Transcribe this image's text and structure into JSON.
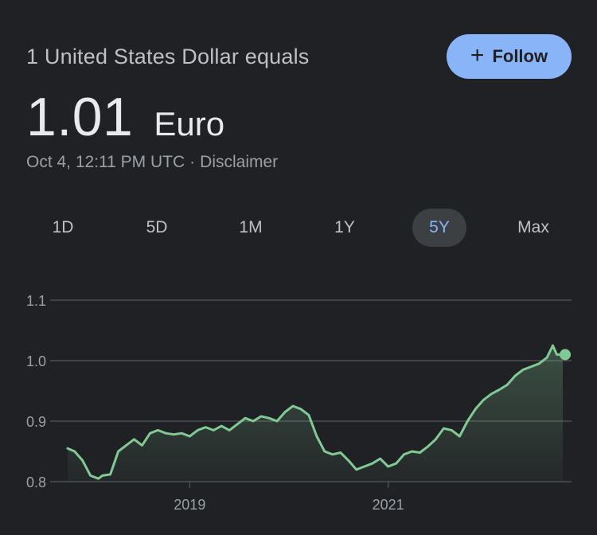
{
  "header": {
    "subtitle": "1 United States Dollar equals",
    "follow_label": "Follow",
    "follow_icon": "plus-icon"
  },
  "rate": {
    "value": "1.01",
    "unit": "Euro"
  },
  "meta": {
    "timestamp": "Oct 4, 12:11 PM UTC",
    "separator": "·",
    "disclaimer": "Disclaimer"
  },
  "ranges": [
    {
      "label": "1D",
      "active": false
    },
    {
      "label": "5D",
      "active": false
    },
    {
      "label": "1M",
      "active": false
    },
    {
      "label": "1Y",
      "active": false
    },
    {
      "label": "5Y",
      "active": true
    },
    {
      "label": "Max",
      "active": false
    }
  ],
  "colors": {
    "background": "#202124",
    "accent": "#8ab4f8",
    "line": "#81c995",
    "grid": "#5f6368"
  },
  "chart_data": {
    "type": "area",
    "ylim": [
      0.8,
      1.1
    ],
    "yticks": [
      "0.8",
      "0.9",
      "1.0",
      "1.1"
    ],
    "xticks": [
      {
        "label": "2019",
        "x": 2019.0
      },
      {
        "label": "2021",
        "x": 2021.0
      }
    ],
    "xlim": [
      2017.77,
      2022.76
    ],
    "grid": true,
    "series": [
      {
        "x": [
          2017.77,
          2017.84,
          2017.92,
          2018.0,
          2018.08,
          2018.12,
          2018.2,
          2018.28,
          2018.36,
          2018.44,
          2018.52,
          2018.6,
          2018.68,
          2018.76,
          2018.84,
          2018.92,
          2019.0,
          2019.08,
          2019.16,
          2019.24,
          2019.32,
          2019.4,
          2019.48,
          2019.56,
          2019.64,
          2019.72,
          2019.8,
          2019.88,
          2019.96,
          2020.04,
          2020.12,
          2020.2,
          2020.28,
          2020.36,
          2020.44,
          2020.52,
          2020.6,
          2020.68,
          2020.76,
          2020.84,
          2020.92,
          2021.0,
          2021.08,
          2021.16,
          2021.24,
          2021.32,
          2021.4,
          2021.48,
          2021.56,
          2021.64,
          2021.72,
          2021.8,
          2021.88,
          2021.96,
          2022.04,
          2022.12,
          2022.2,
          2022.28,
          2022.36,
          2022.44,
          2022.52,
          2022.6,
          2022.66,
          2022.7,
          2022.76
        ],
        "y": [
          0.855,
          0.85,
          0.835,
          0.81,
          0.805,
          0.81,
          0.812,
          0.85,
          0.86,
          0.87,
          0.86,
          0.88,
          0.885,
          0.88,
          0.878,
          0.88,
          0.875,
          0.885,
          0.89,
          0.885,
          0.892,
          0.885,
          0.895,
          0.905,
          0.9,
          0.908,
          0.905,
          0.9,
          0.915,
          0.925,
          0.92,
          0.91,
          0.875,
          0.85,
          0.845,
          0.848,
          0.835,
          0.82,
          0.825,
          0.83,
          0.838,
          0.825,
          0.83,
          0.845,
          0.85,
          0.848,
          0.858,
          0.87,
          0.888,
          0.885,
          0.875,
          0.9,
          0.92,
          0.935,
          0.945,
          0.952,
          0.96,
          0.975,
          0.985,
          0.99,
          0.995,
          1.005,
          1.025,
          1.01,
          1.01
        ]
      }
    ]
  }
}
